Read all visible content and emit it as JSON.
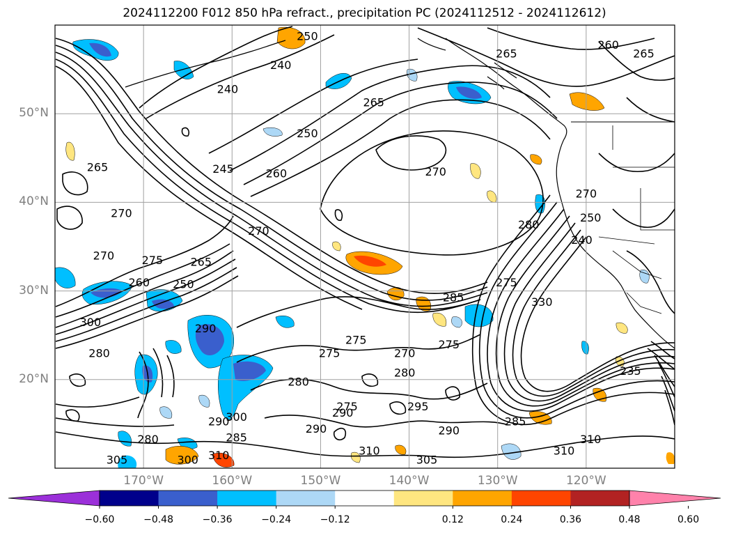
{
  "title": "2024112200 F012 850 hPa refract., precipitation PC (2024112512 - 2024112612)",
  "lat_labels": [
    {
      "text": "50°N",
      "lat": 50
    },
    {
      "text": "40°N",
      "lat": 40
    },
    {
      "text": "30°N",
      "lat": 30
    },
    {
      "text": "20°N",
      "lat": 20
    }
  ],
  "lon_labels": [
    {
      "text": "170°W",
      "lon": -170
    },
    {
      "text": "160°W",
      "lon": -160
    },
    {
      "text": "150°W",
      "lon": -150
    },
    {
      "text": "140°W",
      "lon": -140
    },
    {
      "text": "130°W",
      "lon": -130
    },
    {
      "text": "120°W",
      "lon": -120
    }
  ],
  "colorbar": {
    "ticks": [
      "−0.60",
      "−0.48",
      "−0.36",
      "−0.24",
      "−0.12",
      "0.12",
      "0.24",
      "0.36",
      "0.48",
      "0.60"
    ],
    "colors": [
      "#9b30d9",
      "#00008b",
      "#3a5fcd",
      "#00bfff",
      "#add8f6",
      "#ffffff",
      "#ffe680",
      "#ffa500",
      "#ff4500",
      "#b22222",
      "#ff82ab"
    ]
  },
  "contour_labels": [
    {
      "text": "250",
      "lon": -151.5,
      "lat": 58.8
    },
    {
      "text": "240",
      "lon": -154.5,
      "lat": 55.5
    },
    {
      "text": "240",
      "lon": -160.5,
      "lat": 52.8
    },
    {
      "text": "265",
      "lon": -129.0,
      "lat": 56.8
    },
    {
      "text": "260",
      "lon": -117.5,
      "lat": 57.8
    },
    {
      "text": "265",
      "lon": -113.5,
      "lat": 56.8
    },
    {
      "text": "265",
      "lon": -144.0,
      "lat": 51.3
    },
    {
      "text": "250",
      "lon": -151.5,
      "lat": 47.8
    },
    {
      "text": "245",
      "lon": -161.0,
      "lat": 43.8
    },
    {
      "text": "260",
      "lon": -155.0,
      "lat": 43.3
    },
    {
      "text": "270",
      "lon": -137.0,
      "lat": 43.5
    },
    {
      "text": "265",
      "lon": -175.2,
      "lat": 44.0
    },
    {
      "text": "270",
      "lon": -172.5,
      "lat": 38.8
    },
    {
      "text": "270",
      "lon": -157.0,
      "lat": 36.8
    },
    {
      "text": "270",
      "lon": -174.5,
      "lat": 34.0
    },
    {
      "text": "275",
      "lon": -169.0,
      "lat": 33.5
    },
    {
      "text": "265",
      "lon": -163.5,
      "lat": 33.3
    },
    {
      "text": "260",
      "lon": -170.5,
      "lat": 31.0
    },
    {
      "text": "250",
      "lon": -165.5,
      "lat": 30.8
    },
    {
      "text": "300",
      "lon": -176.0,
      "lat": 26.5
    },
    {
      "text": "280",
      "lon": -175.0,
      "lat": 23.0
    },
    {
      "text": "290",
      "lon": -163.0,
      "lat": 25.8
    },
    {
      "text": "275",
      "lon": -146.0,
      "lat": 24.5
    },
    {
      "text": "275",
      "lon": -149.0,
      "lat": 23.0
    },
    {
      "text": "270",
      "lon": -140.5,
      "lat": 23.0
    },
    {
      "text": "275",
      "lon": -135.5,
      "lat": 24.0
    },
    {
      "text": "285",
      "lon": -135.0,
      "lat": 29.3
    },
    {
      "text": "275",
      "lon": -129.0,
      "lat": 31.0
    },
    {
      "text": "280",
      "lon": -126.5,
      "lat": 37.5
    },
    {
      "text": "330",
      "lon": -125.0,
      "lat": 28.8
    },
    {
      "text": "280",
      "lon": -152.5,
      "lat": 19.8
    },
    {
      "text": "280",
      "lon": -140.5,
      "lat": 20.8
    },
    {
      "text": "295",
      "lon": -139.0,
      "lat": 17.0
    },
    {
      "text": "290",
      "lon": -147.5,
      "lat": 16.3
    },
    {
      "text": "290",
      "lon": -150.5,
      "lat": 14.5
    },
    {
      "text": "290",
      "lon": -135.5,
      "lat": 14.3
    },
    {
      "text": "275",
      "lon": -147.0,
      "lat": 17.0
    },
    {
      "text": "300",
      "lon": -159.5,
      "lat": 15.8
    },
    {
      "text": "290",
      "lon": -161.5,
      "lat": 15.3
    },
    {
      "text": "285",
      "lon": -159.5,
      "lat": 13.5
    },
    {
      "text": "280",
      "lon": -169.5,
      "lat": 13.3
    },
    {
      "text": "305",
      "lon": -173.0,
      "lat": 11.0
    },
    {
      "text": "300",
      "lon": -165.0,
      "lat": 11.0
    },
    {
      "text": "310",
      "lon": -161.5,
      "lat": 11.5
    },
    {
      "text": "310",
      "lon": -144.5,
      "lat": 12.0
    },
    {
      "text": "305",
      "lon": -138.0,
      "lat": 11.0
    },
    {
      "text": "310",
      "lon": -122.5,
      "lat": 12.0
    },
    {
      "text": "310",
      "lon": -119.5,
      "lat": 13.3
    },
    {
      "text": "285",
      "lon": -128.0,
      "lat": 15.3
    },
    {
      "text": "235",
      "lon": -115.0,
      "lat": 21.0
    },
    {
      "text": "240",
      "lon": -120.5,
      "lat": 35.8
    },
    {
      "text": "250",
      "lon": -119.5,
      "lat": 38.3
    },
    {
      "text": "270",
      "lon": -120.0,
      "lat": 41.0
    }
  ]
}
